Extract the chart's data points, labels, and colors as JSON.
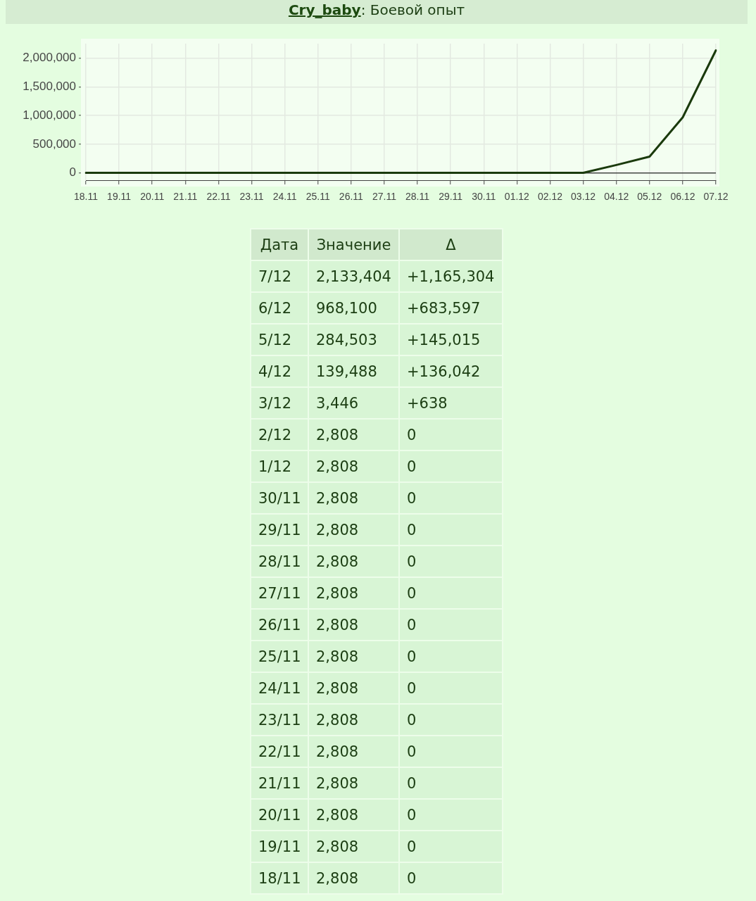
{
  "chart_data": {
    "type": "line",
    "title": "Cry_baby: Боевой опыт",
    "categories": [
      "18.11",
      "19.11",
      "20.11",
      "21.11",
      "22.11",
      "23.11",
      "24.11",
      "25.11",
      "26.11",
      "27.11",
      "28.11",
      "29.11",
      "30.11",
      "01.12",
      "02.12",
      "03.12",
      "04.12",
      "05.12",
      "06.12",
      "07.12"
    ],
    "values": [
      2808,
      2808,
      2808,
      2808,
      2808,
      2808,
      2808,
      2808,
      2808,
      2808,
      2808,
      2808,
      2808,
      2808,
      2808,
      3446,
      139488,
      284503,
      968100,
      2133404
    ],
    "color": "#1a3a0c",
    "ylim": [
      -125000,
      2250000
    ],
    "yticks": [
      0,
      {
        "value": 500000,
        "label": "500,000"
      },
      {
        "value": 1000000,
        "label": "1,000,000"
      },
      {
        "value": 1500000,
        "label": "1,500,000"
      },
      {
        "value": 2000000,
        "label": "2,000,000"
      }
    ],
    "grid": true,
    "annotations": [
      "Дата",
      "Значение",
      "Δ",
      "7/12",
      "2,133,404",
      "+1,165,304",
      "6/12",
      "968,100",
      "+683,597",
      "5/12",
      "284,503",
      "+145,015",
      "4/12",
      "139,488",
      "+136,042",
      "3/12",
      "3,446",
      "+638",
      "2/12",
      "2,808",
      "0",
      "1/12",
      "2,808",
      "0",
      "30/11",
      "2,808",
      "0",
      "29/11",
      "2,808",
      "0",
      "28/11",
      "2,808",
      "0",
      "27/11",
      "2,808",
      "0",
      "26/11",
      "2,808",
      "0",
      "25/11",
      "2,808",
      "0",
      "24/11",
      "2,808",
      "0",
      "23/11",
      "2,808",
      "0",
      "22/11",
      "2,808",
      "0",
      "21/11",
      "2,808",
      "0",
      "20/11",
      "2,808",
      "0",
      "19/11",
      "2,808",
      "0",
      "18/11",
      "2,808",
      "0"
    ]
  }
}
